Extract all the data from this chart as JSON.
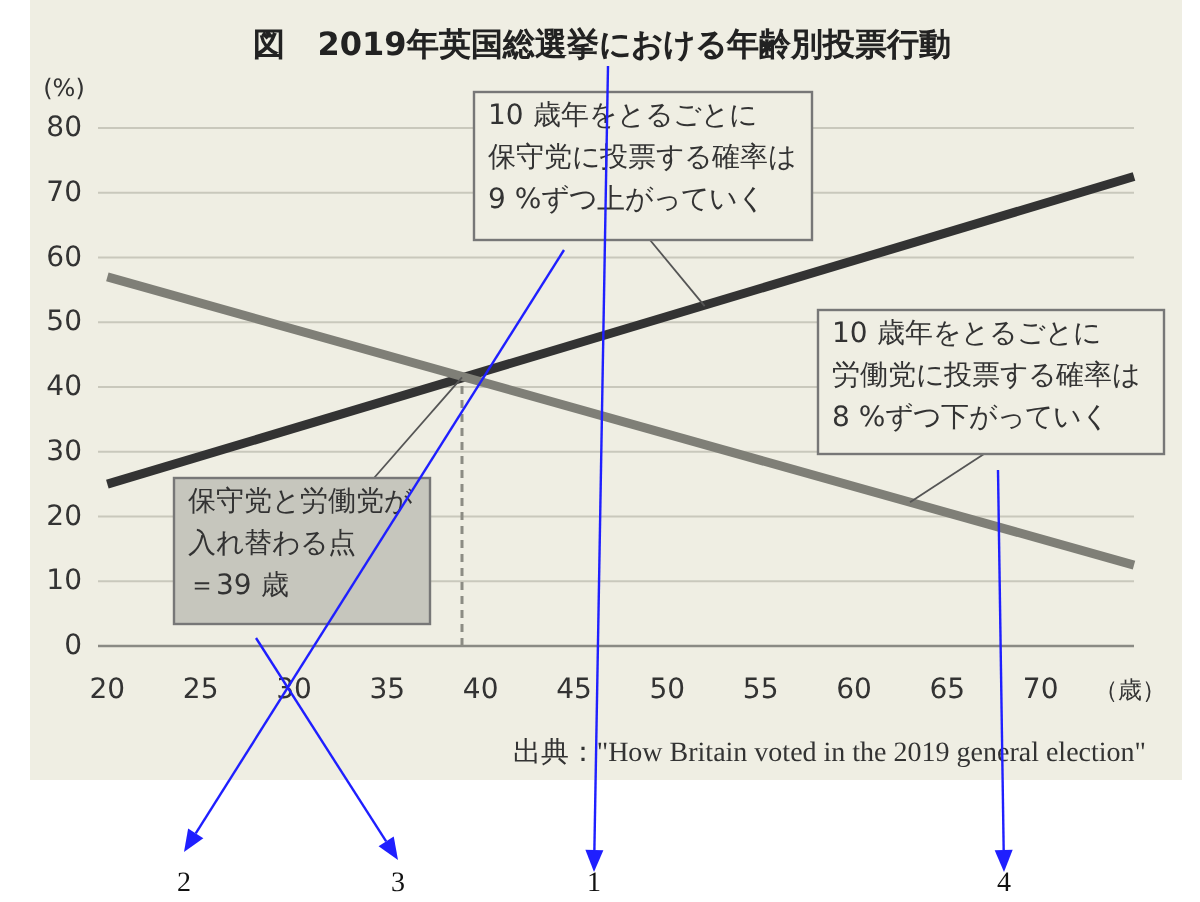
{
  "chart_data": {
    "type": "line",
    "title": "図　2019年英国総選挙における年齢別投票行動",
    "xlabel": "（歳）",
    "ylabel": "(%)",
    "x": [
      20,
      75
    ],
    "series": [
      {
        "color": "#333333",
        "values": [
          25,
          72.5
        ]
      },
      {
        "color": "#7f7f77",
        "values": [
          57,
          12.5
        ]
      }
    ],
    "xlim": [
      19.5,
      75
    ],
    "ylim": [
      0,
      80
    ],
    "xticks": [
      20,
      25,
      30,
      35,
      40,
      45,
      50,
      55,
      60,
      65,
      70
    ],
    "yticks": [
      0,
      10,
      20,
      30,
      40,
      50,
      60,
      70,
      80
    ],
    "grid": "y",
    "ref_lines": [
      {
        "axis": "x",
        "value": 39,
        "color": "#8c8c84",
        "line_style": "dashed"
      }
    ],
    "annotations": [
      {
        "text": "10 歳年をとるごとに保守党に投票する確率は9 %ずつ上がっていく",
        "x": 52,
        "y": 52.5
      },
      {
        "text": "10 歳年をとるごとに労働党に投票する確率は8 %ずつ下がっていく",
        "x": 63,
        "y": 22.2
      },
      {
        "text": "保守党と労働党が入れ替わる点＝39 歳",
        "x": 39,
        "y": 41.5
      },
      "出典：\"How Britain voted in the 2019 general election\"",
      "1",
      "2",
      "3",
      "4"
    ]
  }
}
